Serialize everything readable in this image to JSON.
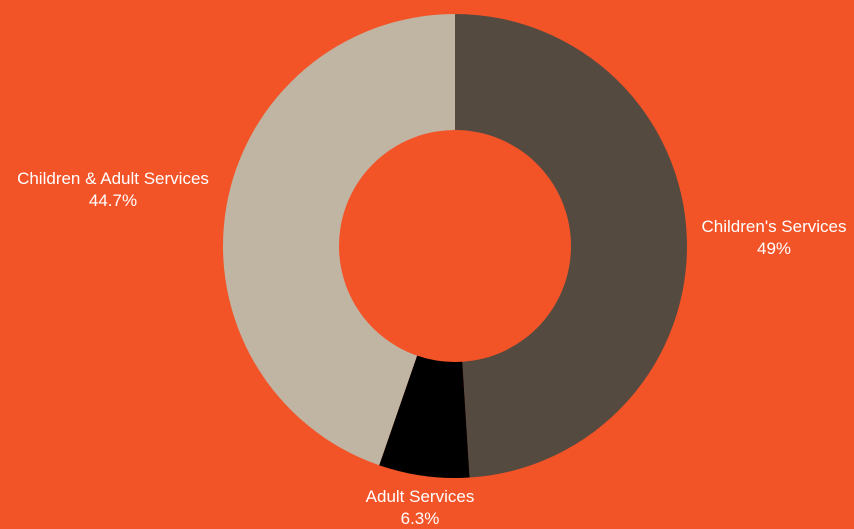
{
  "background_color": "#F25327",
  "chart_data": {
    "type": "pie",
    "variant": "donut",
    "title": "",
    "start_angle_deg": 0,
    "direction": "clockwise",
    "slices": [
      {
        "label": "Children's Services",
        "value": 49,
        "display": "49%",
        "color": "#554A3F"
      },
      {
        "label": "Adult Services",
        "value": 6.3,
        "display": "6.3%",
        "color": "#000000"
      },
      {
        "label": "Children & Adult Services",
        "value": 44.7,
        "display": "44.7%",
        "color": "#C0B5A3"
      }
    ],
    "legend": "none"
  }
}
